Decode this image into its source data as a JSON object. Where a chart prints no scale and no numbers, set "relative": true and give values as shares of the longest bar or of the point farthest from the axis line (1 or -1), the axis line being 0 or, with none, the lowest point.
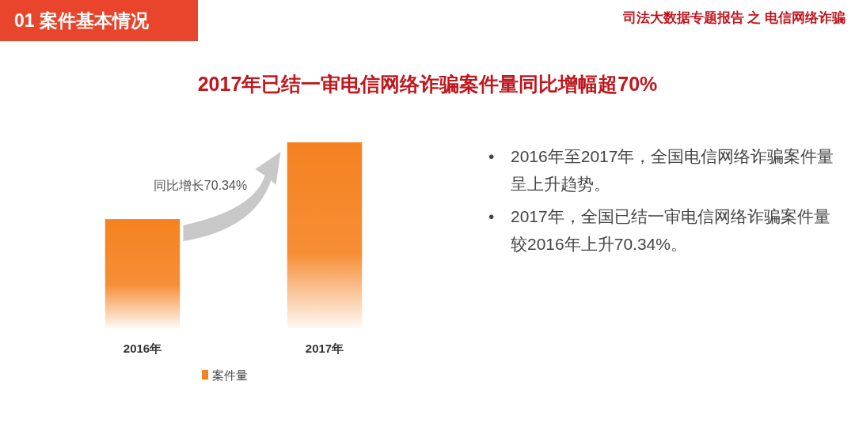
{
  "chart_data": {
    "type": "bar",
    "title": "2017年已结一审电信网络诈骗案件量同比增幅超70%",
    "categories": [
      "2016年",
      "2017年"
    ],
    "series": [
      {
        "name": "案件量",
        "color": "#f58220",
        "values": [
          0.587,
          1
        ]
      }
    ],
    "relative": true,
    "legend": "bottom",
    "grid": false,
    "annotations": [
      "01 案件基本情况",
      "司法大数据专题报告 之 电信网络诈骗",
      "同比增长70.34%",
      "• 2016年至2017年，全国电信网络诈骗案件量呈上升趋势。",
      "• 2017年，全国已结一审电信网络诈骗案件量较2016年上升70.34%。"
    ]
  }
}
